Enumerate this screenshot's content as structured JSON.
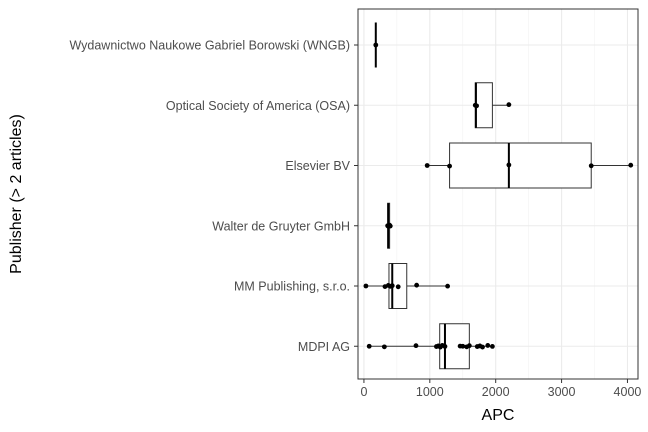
{
  "chart_data": {
    "type": "box",
    "orientation": "horizontal",
    "xlabel": "APC",
    "ylabel": "Publisher (> 2 articles)",
    "xlim": [
      -90,
      4160
    ],
    "xticks": [
      0,
      1000,
      2000,
      3000,
      4000
    ],
    "xtick_labels": [
      "0",
      "1000",
      "2000",
      "3000",
      "4000"
    ],
    "grid": true,
    "theme": "bw",
    "categories": [
      "Wydawnictwo Naukowe Gabriel Borowski (WNGB)",
      "Optical Society of America (OSA)",
      "Elsevier BV",
      "Walter de Gruyter GmbH",
      "MM Publishing, s.r.o.",
      "MDPI AG"
    ],
    "boxes": [
      {
        "category": "Wydawnictwo Naukowe Gabriel Borowski (WNGB)",
        "min": 180,
        "q1": 180,
        "median": 180,
        "q3": 180,
        "max": 180
      },
      {
        "category": "Optical Society of America (OSA)",
        "min": 1690,
        "q1": 1690,
        "median": 1700,
        "q3": 1950,
        "max": 2200
      },
      {
        "category": "Elsevier BV",
        "min": 960,
        "q1": 1300,
        "median": 2200,
        "q3": 3450,
        "max": 4050
      },
      {
        "category": "Walter de Gruyter GmbH",
        "min": 360,
        "q1": 360,
        "median": 370,
        "q3": 390,
        "max": 400
      },
      {
        "category": "MM Publishing, s.r.o.",
        "min": 30,
        "q1": 380,
        "median": 430,
        "q3": 650,
        "max": 1270
      },
      {
        "category": "MDPI AG",
        "min": 80,
        "q1": 1150,
        "median": 1230,
        "q3": 1600,
        "max": 1950
      }
    ],
    "points": [
      {
        "category": "Wydawnictwo Naukowe Gabriel Borowski (WNGB)",
        "values": [
          180
        ]
      },
      {
        "category": "Optical Society of America (OSA)",
        "values": [
          1690,
          1710,
          2200
        ]
      },
      {
        "category": "Elsevier BV",
        "values": [
          960,
          1300,
          2200,
          3450,
          4050
        ]
      },
      {
        "category": "Walter de Gruyter GmbH",
        "values": [
          360,
          370,
          390,
          400
        ]
      },
      {
        "category": "MM Publishing, s.r.o.",
        "values": [
          30,
          320,
          370,
          400,
          430,
          520,
          800,
          1270
        ]
      },
      {
        "category": "MDPI AG",
        "values": [
          80,
          310,
          790,
          1100,
          1130,
          1160,
          1190,
          1230,
          1460,
          1500,
          1560,
          1600,
          1720,
          1760,
          1800,
          1880,
          1950
        ]
      }
    ]
  }
}
